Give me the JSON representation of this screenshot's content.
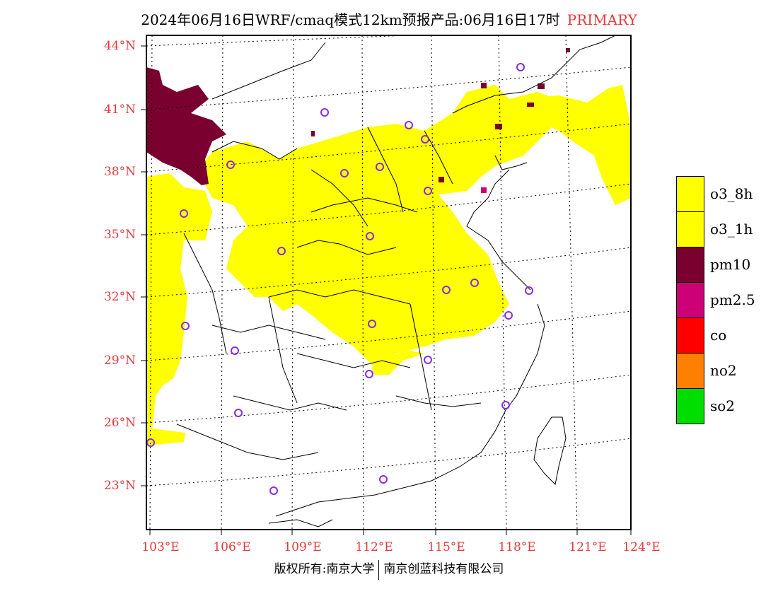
{
  "title": {
    "text": "2024年06月16日WRF/cmaq模式12km预报产品:06月16日17时",
    "status": "PRIMARY"
  },
  "lat_labels": [
    "44°N",
    "41°N",
    "38°N",
    "35°N",
    "32°N",
    "29°N",
    "26°N",
    "23°N"
  ],
  "lon_labels": [
    "103°E",
    "106°E",
    "109°E",
    "112°E",
    "115°E",
    "118°E",
    "121°E",
    "124°E"
  ],
  "legend": [
    {
      "label": "o3_8h",
      "color": "#ffff00"
    },
    {
      "label": "o3_1h",
      "color": "#ffff00"
    },
    {
      "label": "pm10",
      "color": "#7a0030"
    },
    {
      "label": "pm2.5",
      "color": "#cc0077"
    },
    {
      "label": "co",
      "color": "#ff0000"
    },
    {
      "label": "no2",
      "color": "#ff7f00"
    },
    {
      "label": "so2",
      "color": "#00dd00"
    }
  ],
  "footer": {
    "left": "版权所有:南京大学",
    "right": "南京创蓝科技有限公司"
  },
  "colors": {
    "text_red": "#e8393b",
    "o3": "#ffff00",
    "pm10": "#7a0030",
    "pm25": "#cc0077",
    "station_marker": "#8a2be2"
  }
}
